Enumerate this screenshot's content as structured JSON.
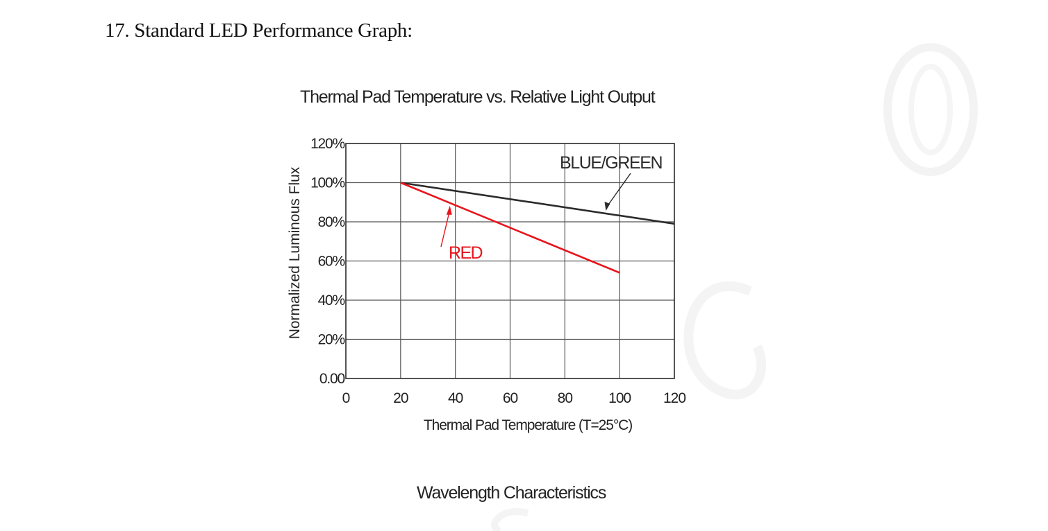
{
  "document": {
    "section_heading": "17. Standard LED Performance Graph:",
    "next_heading": "Wavelength Characteristics"
  },
  "chart_data": {
    "type": "line",
    "title": "Thermal Pad Temperature vs. Relative Light Output",
    "xlabel": "Thermal Pad Temperature (T=25°C)",
    "ylabel": "Normalized Luminous Flux",
    "xlim": [
      0,
      120
    ],
    "ylim": [
      0,
      120
    ],
    "x_ticks": [
      0,
      20,
      40,
      60,
      80,
      100,
      120
    ],
    "x_tick_labels": [
      "0",
      "20",
      "40",
      "60",
      "80",
      "100",
      "120"
    ],
    "y_ticks": [
      0,
      20,
      40,
      60,
      80,
      100,
      120
    ],
    "y_tick_labels": [
      "0.00",
      "20%",
      "40%",
      "60%",
      "80%",
      "100%",
      "120%"
    ],
    "grid": true,
    "series": [
      {
        "name": "BLUE/GREEN",
        "color": "#2b2b2b",
        "x": [
          20,
          120
        ],
        "y": [
          100,
          79
        ]
      },
      {
        "name": "RED",
        "color": "#e8141c",
        "x": [
          20,
          100
        ],
        "y": [
          100,
          54
        ]
      }
    ]
  }
}
